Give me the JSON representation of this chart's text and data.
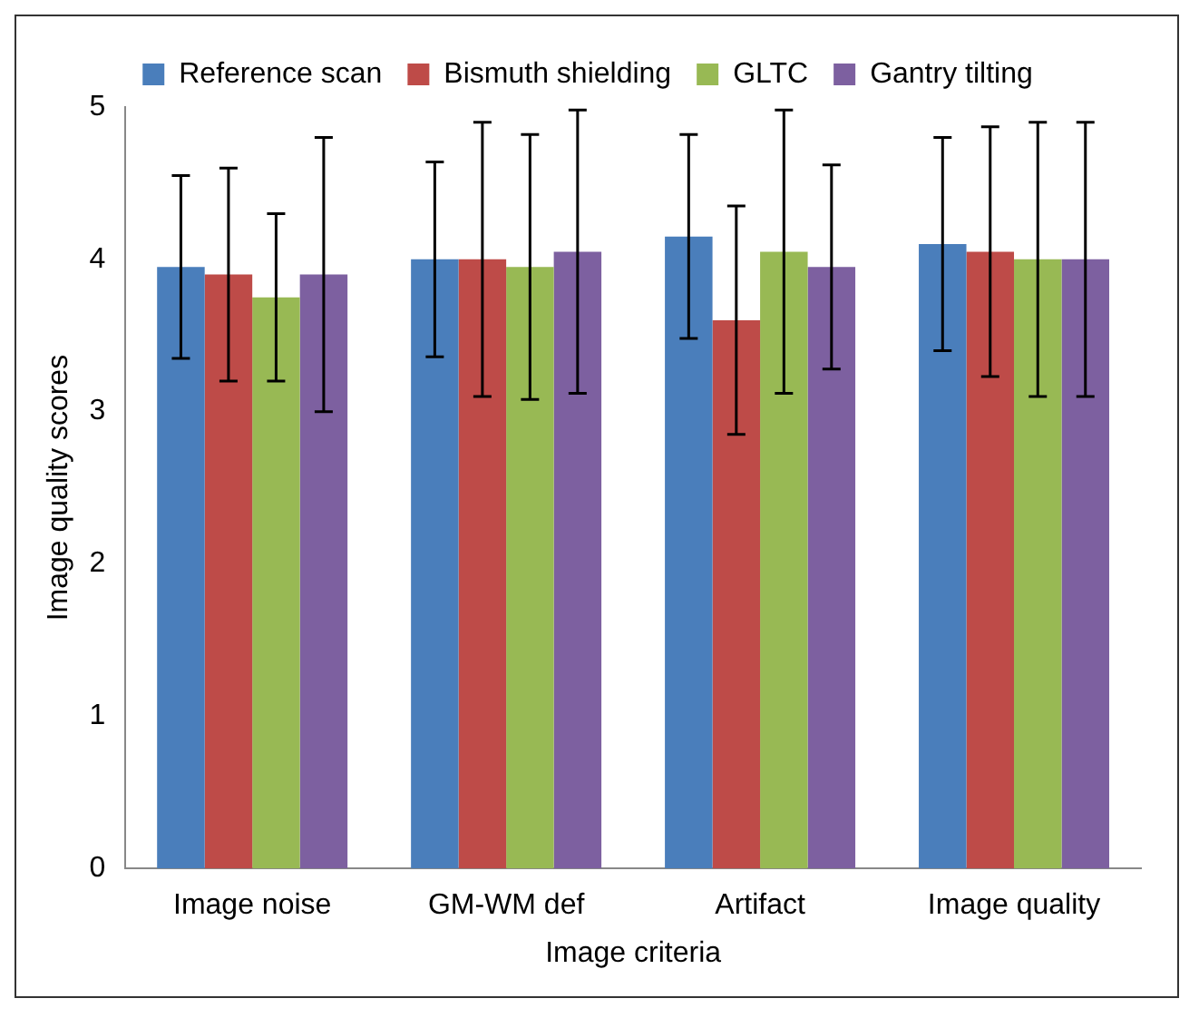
{
  "chart_data": {
    "type": "bar",
    "xlabel": "Image criteria",
    "ylabel": "Image quality scores",
    "categories": [
      "Image noise",
      "GM-WM def",
      "Artifact",
      "Image quality"
    ],
    "series": [
      {
        "name": "Reference scan",
        "color": "#4a7ebb",
        "values": [
          3.95,
          4.0,
          4.15,
          4.1
        ],
        "errors": [
          0.6,
          0.64,
          0.67,
          0.7
        ]
      },
      {
        "name": "Bismuth shielding",
        "color": "#be4b48",
        "values": [
          3.9,
          4.0,
          3.6,
          4.05
        ],
        "errors": [
          0.7,
          0.9,
          0.75,
          0.82
        ]
      },
      {
        "name": "GLTC",
        "color": "#98b954",
        "values": [
          3.75,
          3.95,
          4.05,
          4.0
        ],
        "errors": [
          0.55,
          0.87,
          0.93,
          0.9
        ]
      },
      {
        "name": "Gantry tilting",
        "color": "#7d60a0",
        "values": [
          3.9,
          4.05,
          3.95,
          4.0
        ],
        "errors": [
          0.9,
          0.93,
          0.67,
          0.9
        ]
      }
    ],
    "ylim": [
      0,
      5
    ],
    "yticks": [
      0,
      1,
      2,
      3,
      4,
      5
    ],
    "grid": false,
    "legend": "top"
  }
}
